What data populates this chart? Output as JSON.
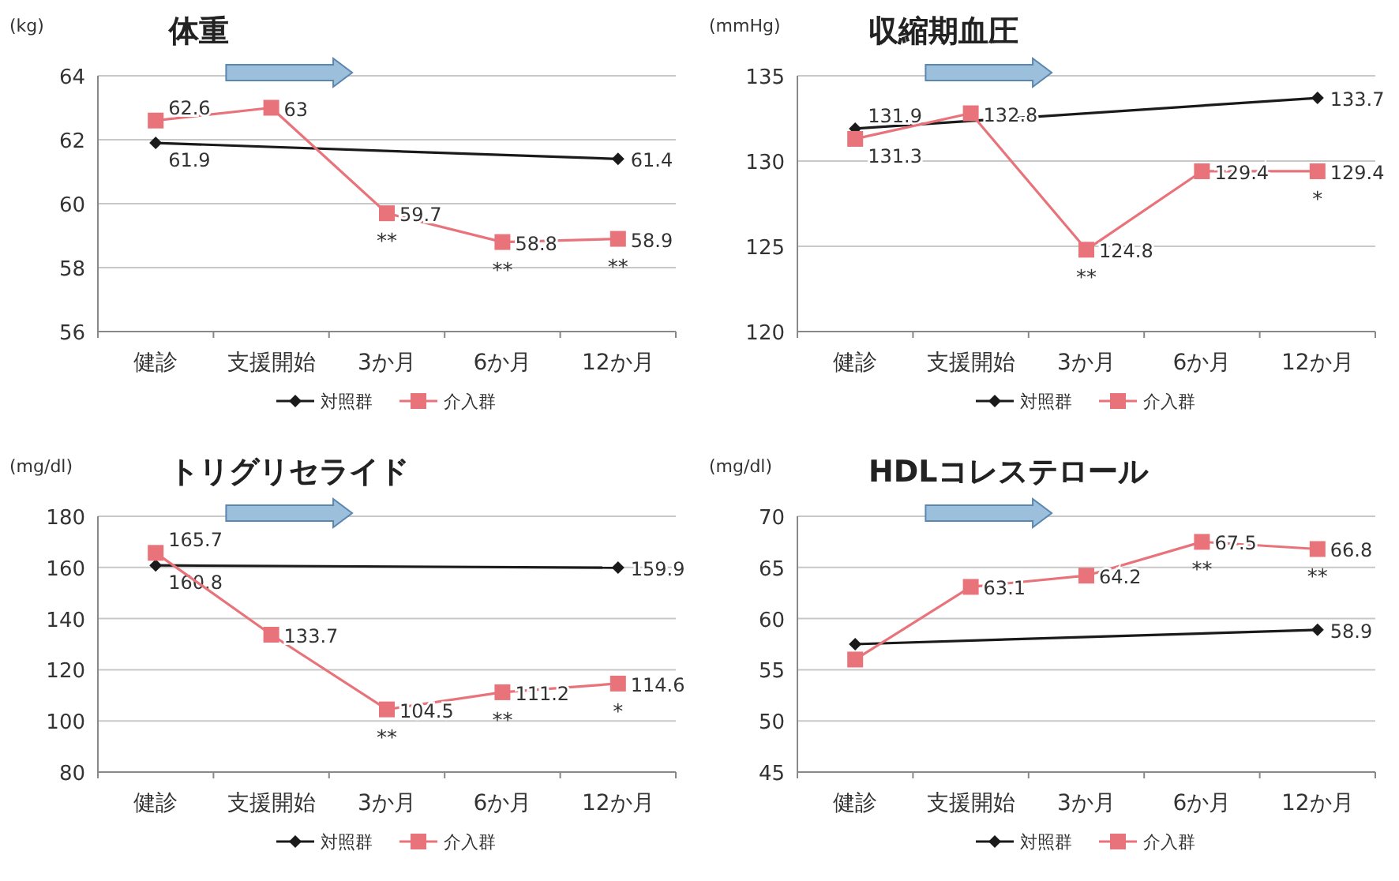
{
  "chart_data": [
    {
      "type": "line",
      "title": "体重",
      "ylabel": "(kg)",
      "categories": [
        "健診",
        "支援開始",
        "3か月",
        "6か月",
        "12か月"
      ],
      "ylim": [
        56,
        64
      ],
      "yticks": [
        56,
        58,
        60,
        62,
        64
      ],
      "grid": "y",
      "legend": "bottom",
      "series": [
        {
          "name": "対照群",
          "color": "#1a1a1a",
          "marker": "diamond",
          "x": [
            "健診",
            "12か月"
          ],
          "values": [
            61.9,
            61.4
          ],
          "value_labels": [
            "61.9",
            "61.4"
          ]
        },
        {
          "name": "介入群",
          "color": "#e8737a",
          "marker": "square",
          "values": [
            62.6,
            63,
            59.7,
            58.8,
            58.9
          ],
          "value_labels": [
            "62.6",
            "63",
            "59.7",
            "58.8",
            "58.9"
          ]
        }
      ],
      "annotations": [
        {
          "text": "**",
          "x": "3か月",
          "y": 59.7
        },
        {
          "text": "**",
          "x": "6か月",
          "y": 58.8
        },
        {
          "text": "**",
          "x": "12か月",
          "y": 58.9
        }
      ]
    },
    {
      "type": "line",
      "title": "収縮期血圧",
      "ylabel": "(mmHg)",
      "categories": [
        "健診",
        "支援開始",
        "3か月",
        "6か月",
        "12か月"
      ],
      "ylim": [
        120,
        135
      ],
      "yticks": [
        120,
        125,
        130,
        135
      ],
      "grid": "y",
      "legend": "bottom",
      "series": [
        {
          "name": "対照群",
          "color": "#1a1a1a",
          "marker": "diamond",
          "x": [
            "健診",
            "12か月"
          ],
          "values": [
            131.9,
            133.7
          ],
          "value_labels": [
            "131.9",
            "133.7"
          ]
        },
        {
          "name": "介入群",
          "color": "#e8737a",
          "marker": "square",
          "values": [
            131.3,
            132.8,
            124.8,
            129.4,
            129.4
          ],
          "value_labels": [
            "131.3",
            "132.8",
            "124.8",
            "129.4",
            "129.4"
          ]
        }
      ],
      "annotations": [
        {
          "text": "**",
          "x": "3か月",
          "y": 124.8
        },
        {
          "text": "*",
          "x": "12か月",
          "y": 129.4
        }
      ]
    },
    {
      "type": "line",
      "title": "トリグリセライド",
      "ylabel": "(mg/dl)",
      "categories": [
        "健診",
        "支援開始",
        "3か月",
        "6か月",
        "12か月"
      ],
      "ylim": [
        80,
        180
      ],
      "yticks": [
        80,
        100,
        120,
        140,
        160,
        180
      ],
      "grid": "y",
      "legend": "bottom",
      "series": [
        {
          "name": "対照群",
          "color": "#1a1a1a",
          "marker": "diamond",
          "x": [
            "健診",
            "12か月"
          ],
          "values": [
            160.8,
            159.9
          ],
          "value_labels": [
            "160.8",
            "159.9"
          ]
        },
        {
          "name": "介入群",
          "color": "#e8737a",
          "marker": "square",
          "values": [
            165.7,
            133.7,
            104.5,
            111.2,
            114.6
          ],
          "value_labels": [
            "165.7",
            "133.7",
            "104.5",
            "111.2",
            "114.6"
          ]
        }
      ],
      "annotations": [
        {
          "text": "**",
          "x": "3か月",
          "y": 104.5
        },
        {
          "text": "**",
          "x": "6か月",
          "y": 111.2
        },
        {
          "text": "*",
          "x": "12か月",
          "y": 114.6
        }
      ]
    },
    {
      "type": "line",
      "title": "HDLコレステロール",
      "ylabel": "(mg/dl)",
      "categories": [
        "健診",
        "支援開始",
        "3か月",
        "6か月",
        "12か月"
      ],
      "ylim": [
        45,
        70
      ],
      "yticks": [
        45,
        50,
        55,
        60,
        65,
        70
      ],
      "grid": "y",
      "legend": "bottom",
      "series": [
        {
          "name": "対照群",
          "color": "#1a1a1a",
          "marker": "diamond",
          "x": [
            "健診",
            "12か月"
          ],
          "values": [
            57.5,
            58.9
          ],
          "value_labels": [
            null,
            "58.9"
          ]
        },
        {
          "name": "介入群",
          "color": "#e8737a",
          "marker": "square",
          "values": [
            56.0,
            63.1,
            64.2,
            67.5,
            66.8
          ],
          "value_labels": [
            null,
            "63.1",
            "64.2",
            "67.5",
            "66.8"
          ]
        }
      ],
      "annotations": [
        {
          "text": "**",
          "x": "6か月",
          "y": 67.5
        },
        {
          "text": "**",
          "x": "12か月",
          "y": 66.8
        }
      ]
    }
  ]
}
